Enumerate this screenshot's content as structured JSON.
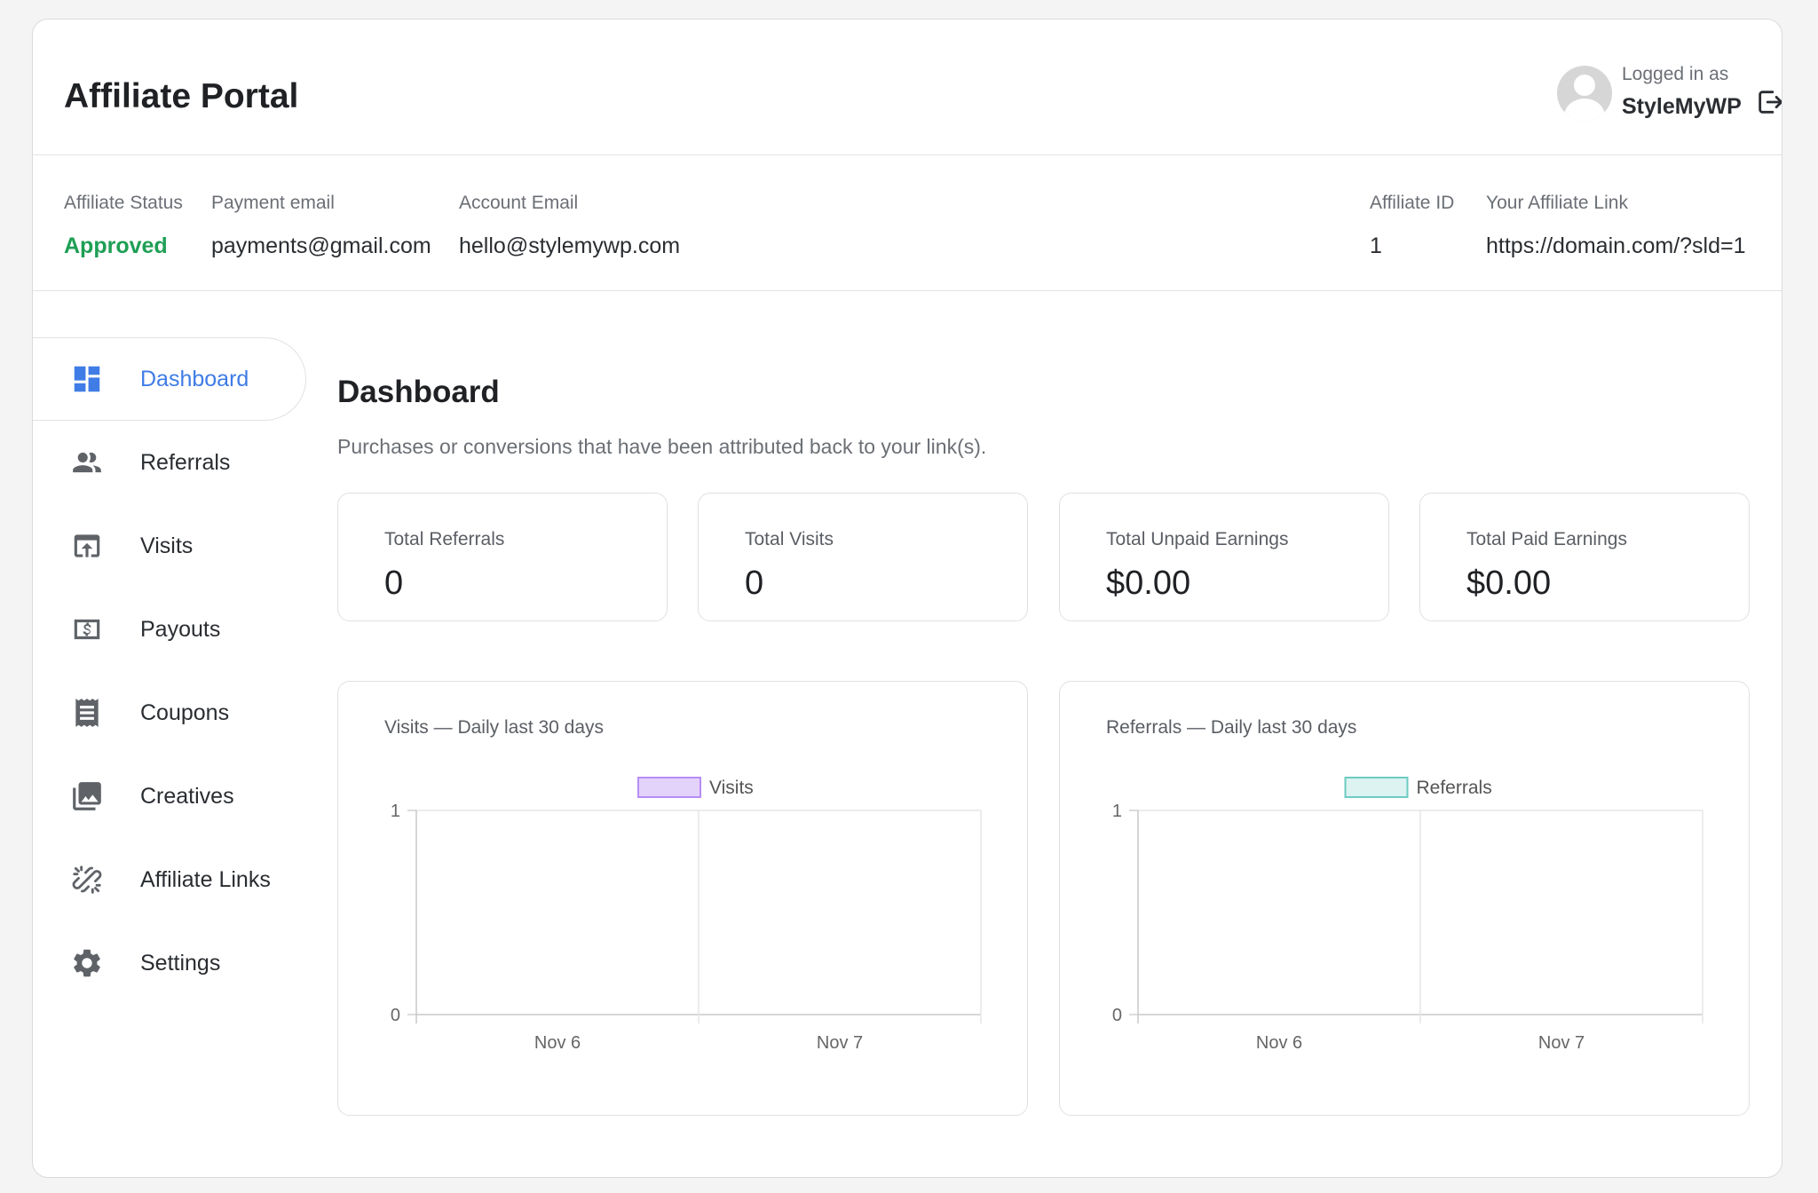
{
  "header": {
    "title": "Affiliate Portal",
    "logged_label": "Logged in as",
    "user_name": "StyleMyWP"
  },
  "info": {
    "status_label": "Affiliate Status",
    "status_value": "Approved",
    "payment_label": "Payment email",
    "payment_value": "payments@gmail.com",
    "account_label": "Account Email",
    "account_value": "hello@stylemywp.com",
    "id_label": "Affiliate ID",
    "id_value": "1",
    "link_label": "Your Affiliate Link",
    "link_value": "https://domain.com/?sld=1"
  },
  "sidebar": {
    "items": [
      {
        "label": "Dashboard",
        "icon": "dashboard-icon",
        "active": true
      },
      {
        "label": "Referrals",
        "icon": "people-icon"
      },
      {
        "label": "Visits",
        "icon": "upload-box-icon"
      },
      {
        "label": "Payouts",
        "icon": "dollar-icon"
      },
      {
        "label": "Coupons",
        "icon": "receipt-icon"
      },
      {
        "label": "Creatives",
        "icon": "images-icon"
      },
      {
        "label": "Affiliate Links",
        "icon": "broken-link-icon"
      },
      {
        "label": "Settings",
        "icon": "gear-icon"
      }
    ]
  },
  "main": {
    "title": "Dashboard",
    "subtitle": "Purchases or conversions that have been attributed back to your link(s).",
    "stats": [
      {
        "label": "Total Referrals",
        "value": "0"
      },
      {
        "label": "Total Visits",
        "value": "0"
      },
      {
        "label": "Total Unpaid Earnings",
        "value": "$0.00"
      },
      {
        "label": "Total Paid Earnings",
        "value": "$0.00"
      }
    ]
  },
  "colors": {
    "accent": "#3f7ce6",
    "approved": "#1e9f55",
    "visits_fill": "#e3d3fb",
    "visits_stroke": "#b88cf5",
    "referrals_fill": "#dcf3f1",
    "referrals_stroke": "#6ccbc2"
  },
  "chart_data": [
    {
      "type": "bar",
      "title": "Visits — Daily last 30 days",
      "categories": [
        "Nov 6",
        "Nov 7"
      ],
      "series": [
        {
          "name": "Visits",
          "values": [
            0,
            0
          ]
        }
      ],
      "ylim": [
        0,
        1
      ],
      "yticks": [
        "0",
        "1"
      ],
      "legend": "top-center",
      "grid": true
    },
    {
      "type": "bar",
      "title": "Referrals — Daily last 30 days",
      "categories": [
        "Nov 6",
        "Nov 7"
      ],
      "series": [
        {
          "name": "Referrals",
          "values": [
            0,
            0
          ]
        }
      ],
      "ylim": [
        0,
        1
      ],
      "yticks": [
        "0",
        "1"
      ],
      "legend": "top-center",
      "grid": true
    }
  ]
}
